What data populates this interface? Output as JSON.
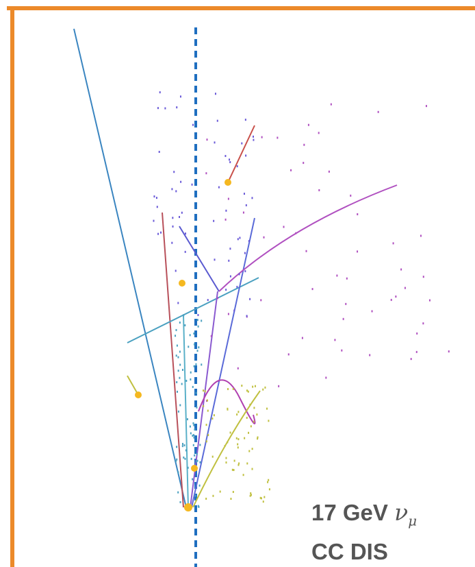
{
  "label": {
    "energy": "17 GeV",
    "particle": "ν",
    "flavor": "μ",
    "process": "CC DIS"
  }
}
